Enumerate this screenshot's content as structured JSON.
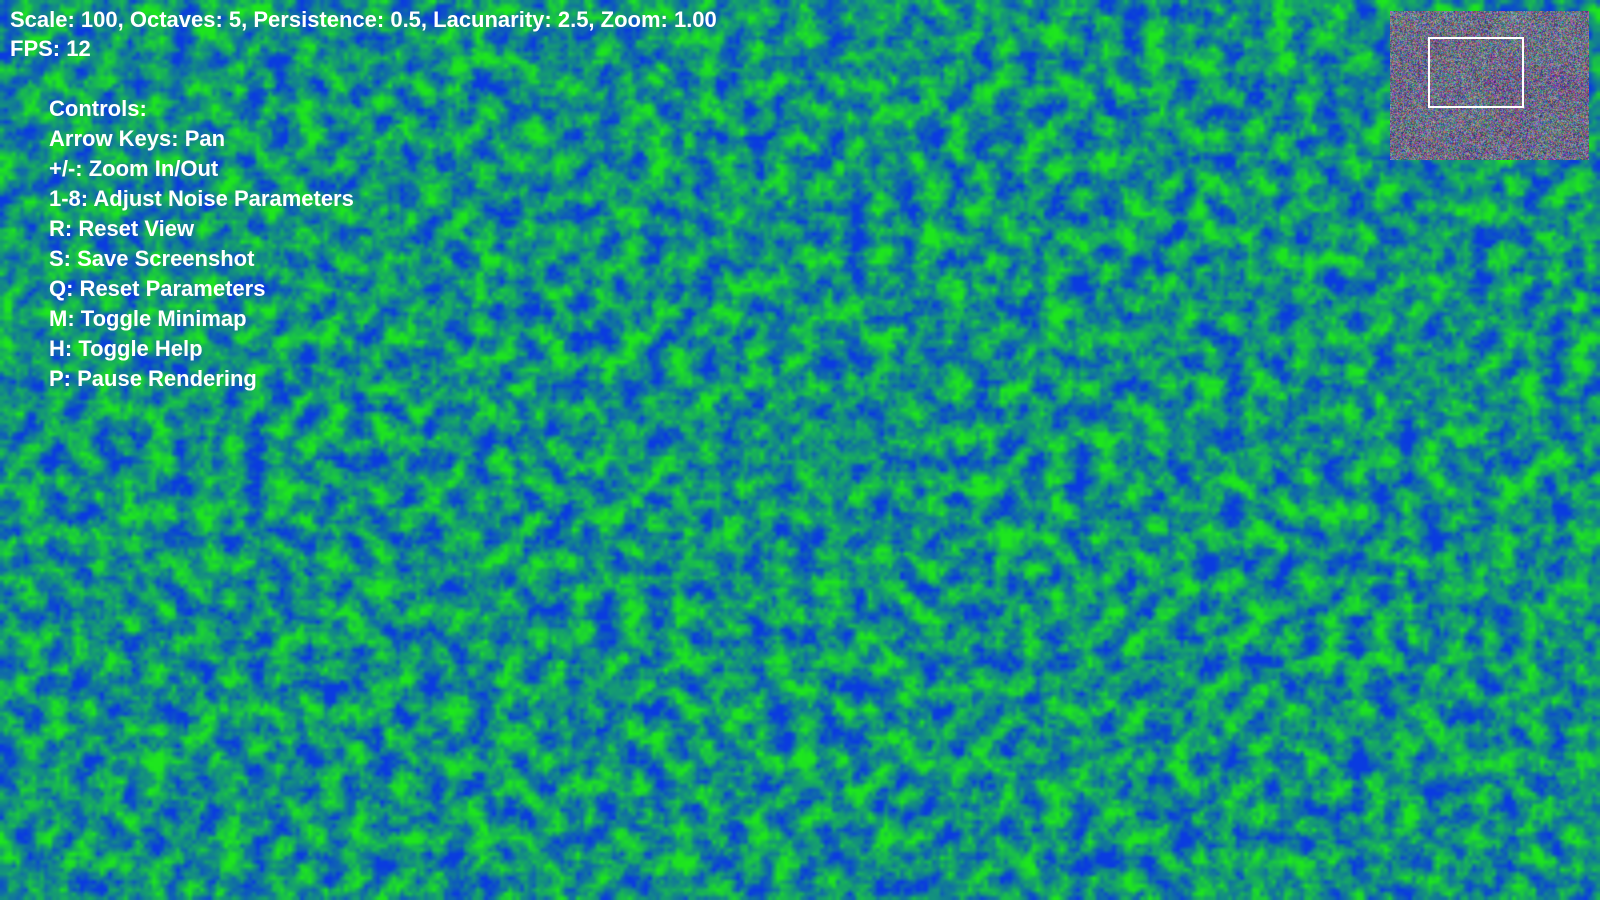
{
  "hud": {
    "status_text": "Scale: 100, Octaves: 5, Persistence: 0.5, Lacunarity: 2.5, Zoom: 1.00",
    "fps_text": "FPS: 12"
  },
  "noise_params": {
    "scale": 100,
    "octaves": 5,
    "persistence": 0.5,
    "lacunarity": 2.5,
    "zoom": 1.0,
    "fps": 12
  },
  "help": {
    "title": "Controls:",
    "lines": [
      "Arrow Keys: Pan",
      "+/-: Zoom In/Out",
      "1-8: Adjust Noise Parameters",
      "R: Reset View",
      "S: Save Screenshot",
      "Q: Reset Parameters",
      "M: Toggle Minimap",
      "H: Toggle Help",
      "P: Pause Rendering"
    ]
  },
  "colors": {
    "low": "#0a3be0",
    "high": "#1ee61e",
    "text": "#ffffff",
    "minimap_border": "#ffffff"
  },
  "minimap": {
    "visible": true
  }
}
